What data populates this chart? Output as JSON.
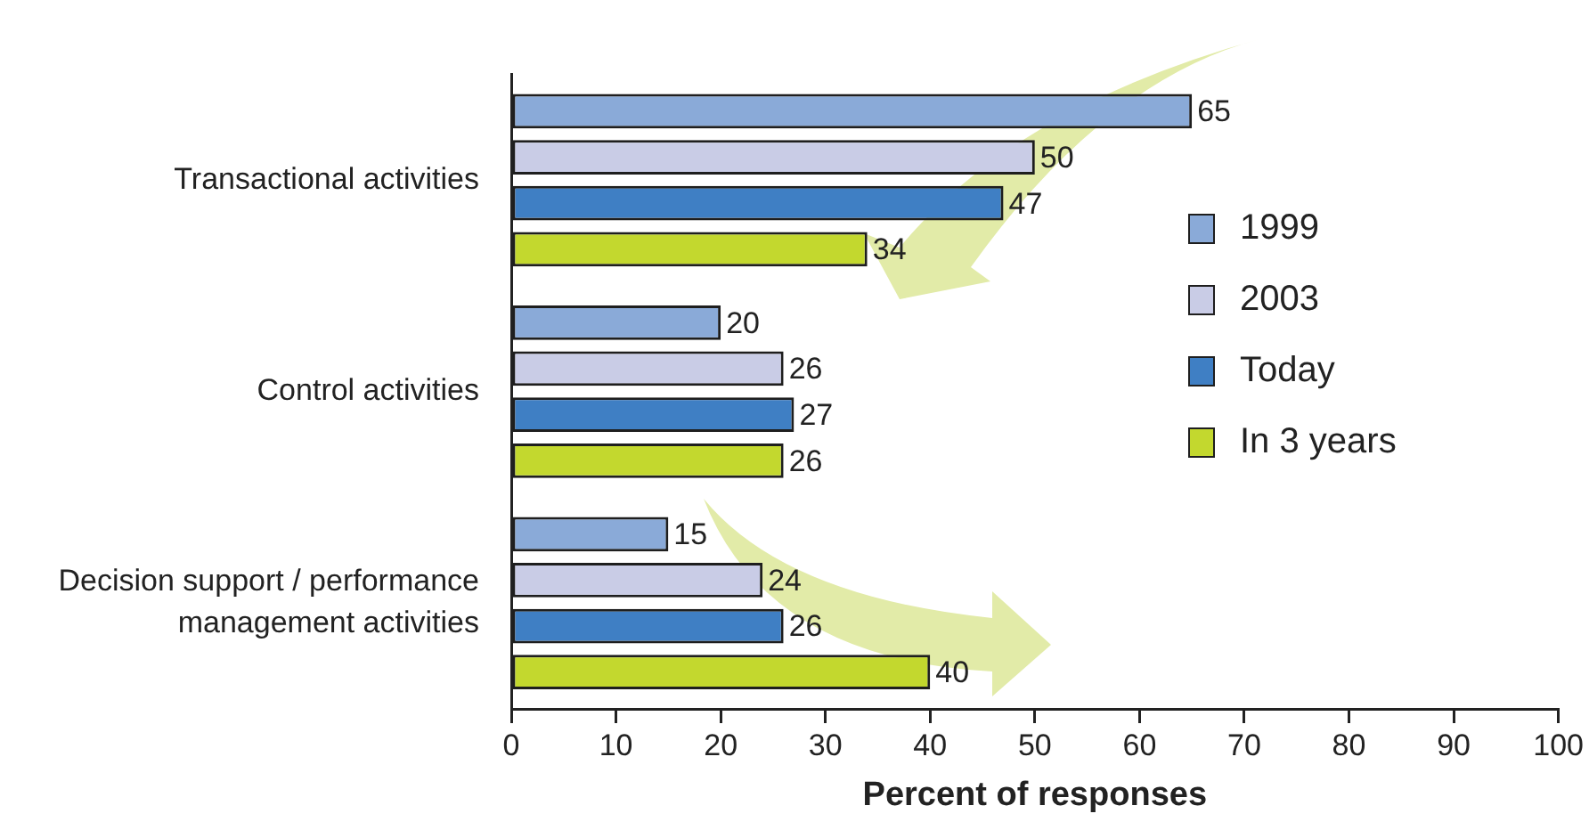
{
  "chart_data": {
    "type": "bar",
    "orientation": "horizontal",
    "categories": [
      "Transactional activities",
      "Control activities",
      "Decision support / performance management activities"
    ],
    "series": [
      {
        "name": "1999",
        "color": "#8aaad8",
        "values": [
          65,
          20,
          15
        ]
      },
      {
        "name": "2003",
        "color": "#c9cce6",
        "values": [
          50,
          26,
          24
        ]
      },
      {
        "name": "Today",
        "color": "#3f7fc4",
        "values": [
          47,
          27,
          26
        ]
      },
      {
        "name": "In 3 years",
        "color": "#c3d82e",
        "values": [
          34,
          26,
          40
        ]
      }
    ],
    "xlabel": "Percent of responses",
    "xlim": [
      0,
      100
    ],
    "xticks": [
      0,
      10,
      20,
      30,
      40,
      50,
      60,
      70,
      80,
      90,
      100
    ],
    "data_labels": true,
    "legend": "right"
  }
}
